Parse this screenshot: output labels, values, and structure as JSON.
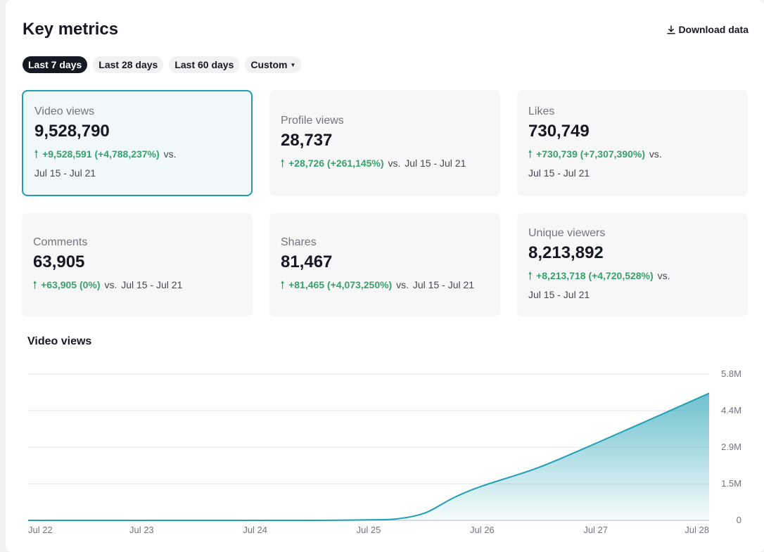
{
  "header": {
    "title": "Key metrics",
    "download_label": "Download data"
  },
  "ranges": [
    {
      "label": "Last 7 days",
      "active": true
    },
    {
      "label": "Last 28 days",
      "active": false
    },
    {
      "label": "Last 60 days",
      "active": false
    },
    {
      "label": "Custom",
      "active": false
    }
  ],
  "cards": [
    {
      "label": "Video views",
      "value": "9,528,790",
      "delta": "+9,528,591 (+4,788,237%)",
      "vs": "vs.",
      "range": "Jul 15 - Jul 21"
    },
    {
      "label": "Profile views",
      "value": "28,737",
      "delta": "+28,726 (+261,145%)",
      "vs": "vs.",
      "range": "Jul 15 - Jul 21"
    },
    {
      "label": "Likes",
      "value": "730,749",
      "delta": "+730,739 (+7,307,390%)",
      "vs": "vs.",
      "range": "Jul 15 - Jul 21"
    },
    {
      "label": "Comments",
      "value": "63,905",
      "delta": "+63,905 (0%)",
      "vs": "vs.",
      "range": "Jul 15 - Jul 21"
    },
    {
      "label": "Shares",
      "value": "81,467",
      "delta": "+81,465 (+4,073,250%)",
      "vs": "vs.",
      "range": "Jul 15 - Jul 21"
    },
    {
      "label": "Unique viewers",
      "value": "8,213,892",
      "delta": "+8,213,718 (+4,720,528%)",
      "vs": "vs.",
      "range": "Jul 15 - Jul 21"
    }
  ],
  "colors": {
    "accent": "#1e9fb5",
    "positive": "#36a16c",
    "active_pill": "#161823"
  },
  "icons": {
    "download": "download-icon",
    "trend": "arrow-up-icon",
    "dropdown": "caret-down-icon"
  },
  "chart_data": {
    "type": "area",
    "title": "Video views",
    "categories": [
      "Jul 22",
      "Jul 23",
      "Jul 24",
      "Jul 25",
      "Jul 26",
      "Jul 27",
      "Jul 28"
    ],
    "x": [
      0,
      0.5,
      1,
      1.5,
      2,
      2.5,
      3,
      3.25,
      3.5,
      3.75,
      4,
      4.5,
      5,
      5.5,
      6
    ],
    "values": [
      0,
      0,
      0,
      0,
      0,
      0,
      20000,
      60000,
      300000,
      900000,
      1360000,
      2100000,
      3050000,
      4040000,
      5040000
    ],
    "y_ticks": [
      "0",
      "1.5M",
      "2.9M",
      "4.4M",
      "5.8M"
    ],
    "y_tick_values": [
      0,
      1450000,
      2900000,
      4350000,
      5800000
    ],
    "ylim": [
      0,
      5800000
    ],
    "grid": true,
    "y_axis_side": "right"
  }
}
